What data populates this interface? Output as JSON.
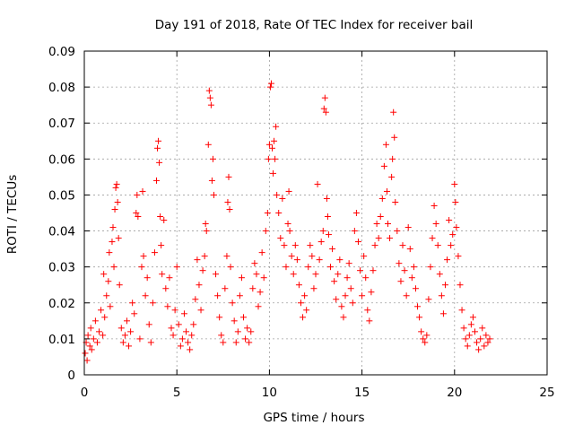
{
  "chart_data": {
    "type": "scatter",
    "title": "Day 191 of 2018, Rate Of TEC Index for receiver bail",
    "xlabel": "GPS time / hours",
    "ylabel": "ROTI / TECUs",
    "xlim": [
      0,
      25
    ],
    "ylim": [
      0,
      0.09
    ],
    "xticks": [
      0,
      5,
      10,
      15,
      20,
      25
    ],
    "xtick_labels": [
      "0",
      "5",
      "10",
      "15",
      "20",
      "25"
    ],
    "yticks": [
      0,
      0.01,
      0.02,
      0.03,
      0.04,
      0.05,
      0.06,
      0.07,
      0.08,
      0.09
    ],
    "ytick_labels": [
      "0",
      "0.01",
      "0.02",
      "0.03",
      "0.04",
      "0.05",
      "0.06",
      "0.07",
      "0.08",
      "0.09"
    ],
    "grid": true,
    "marker": "+",
    "marker_color": "#ff0000",
    "data_x_range": [
      0,
      21.9
    ],
    "series": [
      {
        "name": "ROTI",
        "points": [
          [
            0.05,
            0.006
          ],
          [
            0.1,
            0.009
          ],
          [
            0.15,
            0.004
          ],
          [
            0.2,
            0.011
          ],
          [
            0.3,
            0.008
          ],
          [
            0.35,
            0.013
          ],
          [
            0.4,
            0.007
          ],
          [
            0.5,
            0.01
          ],
          [
            0.6,
            0.015
          ],
          [
            0.7,
            0.009
          ],
          [
            0.8,
            0.012
          ],
          [
            0.9,
            0.018
          ],
          [
            1.0,
            0.011
          ],
          [
            1.05,
            0.028
          ],
          [
            1.1,
            0.016
          ],
          [
            1.2,
            0.022
          ],
          [
            1.3,
            0.026
          ],
          [
            1.35,
            0.034
          ],
          [
            1.4,
            0.019
          ],
          [
            1.5,
            0.037
          ],
          [
            1.55,
            0.041
          ],
          [
            1.6,
            0.03
          ],
          [
            1.65,
            0.046
          ],
          [
            1.7,
            0.052
          ],
          [
            1.75,
            0.053
          ],
          [
            1.8,
            0.048
          ],
          [
            1.85,
            0.038
          ],
          [
            1.9,
            0.025
          ],
          [
            2.0,
            0.013
          ],
          [
            2.1,
            0.009
          ],
          [
            2.2,
            0.011
          ],
          [
            2.3,
            0.015
          ],
          [
            2.4,
            0.008
          ],
          [
            2.5,
            0.012
          ],
          [
            2.6,
            0.02
          ],
          [
            2.7,
            0.017
          ],
          [
            2.8,
            0.045
          ],
          [
            2.85,
            0.05
          ],
          [
            2.9,
            0.044
          ],
          [
            3.0,
            0.01
          ],
          [
            3.1,
            0.03
          ],
          [
            3.15,
            0.051
          ],
          [
            3.2,
            0.033
          ],
          [
            3.3,
            0.022
          ],
          [
            3.4,
            0.027
          ],
          [
            3.5,
            0.014
          ],
          [
            3.6,
            0.009
          ],
          [
            3.7,
            0.02
          ],
          [
            3.8,
            0.034
          ],
          [
            3.9,
            0.054
          ],
          [
            3.95,
            0.063
          ],
          [
            4.0,
            0.065
          ],
          [
            4.05,
            0.059
          ],
          [
            4.1,
            0.044
          ],
          [
            4.15,
            0.036
          ],
          [
            4.2,
            0.028
          ],
          [
            4.3,
            0.043
          ],
          [
            4.4,
            0.024
          ],
          [
            4.5,
            0.019
          ],
          [
            4.6,
            0.027
          ],
          [
            4.7,
            0.013
          ],
          [
            4.8,
            0.011
          ],
          [
            4.9,
            0.018
          ],
          [
            5.0,
            0.03
          ],
          [
            5.1,
            0.014
          ],
          [
            5.2,
            0.008
          ],
          [
            5.3,
            0.01
          ],
          [
            5.4,
            0.017
          ],
          [
            5.5,
            0.012
          ],
          [
            5.6,
            0.009
          ],
          [
            5.7,
            0.007
          ],
          [
            5.8,
            0.011
          ],
          [
            5.9,
            0.014
          ],
          [
            6.0,
            0.021
          ],
          [
            6.1,
            0.032
          ],
          [
            6.2,
            0.025
          ],
          [
            6.3,
            0.018
          ],
          [
            6.4,
            0.029
          ],
          [
            6.5,
            0.033
          ],
          [
            6.55,
            0.042
          ],
          [
            6.6,
            0.04
          ],
          [
            6.7,
            0.064
          ],
          [
            6.75,
            0.079
          ],
          [
            6.8,
            0.077
          ],
          [
            6.85,
            0.075
          ],
          [
            6.9,
            0.054
          ],
          [
            6.95,
            0.06
          ],
          [
            7.0,
            0.05
          ],
          [
            7.1,
            0.028
          ],
          [
            7.2,
            0.022
          ],
          [
            7.3,
            0.016
          ],
          [
            7.4,
            0.011
          ],
          [
            7.5,
            0.009
          ],
          [
            7.6,
            0.024
          ],
          [
            7.7,
            0.033
          ],
          [
            7.75,
            0.048
          ],
          [
            7.8,
            0.055
          ],
          [
            7.85,
            0.046
          ],
          [
            7.9,
            0.03
          ],
          [
            8.0,
            0.02
          ],
          [
            8.1,
            0.015
          ],
          [
            8.2,
            0.009
          ],
          [
            8.3,
            0.012
          ],
          [
            8.4,
            0.022
          ],
          [
            8.5,
            0.027
          ],
          [
            8.6,
            0.016
          ],
          [
            8.7,
            0.01
          ],
          [
            8.8,
            0.013
          ],
          [
            8.9,
            0.009
          ],
          [
            9.0,
            0.012
          ],
          [
            9.1,
            0.024
          ],
          [
            9.2,
            0.031
          ],
          [
            9.3,
            0.028
          ],
          [
            9.4,
            0.019
          ],
          [
            9.5,
            0.023
          ],
          [
            9.6,
            0.034
          ],
          [
            9.7,
            0.027
          ],
          [
            9.8,
            0.04
          ],
          [
            9.9,
            0.045
          ],
          [
            9.95,
            0.06
          ],
          [
            10.0,
            0.064
          ],
          [
            10.05,
            0.08
          ],
          [
            10.1,
            0.081
          ],
          [
            10.15,
            0.063
          ],
          [
            10.2,
            0.056
          ],
          [
            10.25,
            0.065
          ],
          [
            10.3,
            0.06
          ],
          [
            10.35,
            0.069
          ],
          [
            10.4,
            0.05
          ],
          [
            10.5,
            0.045
          ],
          [
            10.6,
            0.038
          ],
          [
            10.7,
            0.049
          ],
          [
            10.8,
            0.036
          ],
          [
            10.9,
            0.03
          ],
          [
            11.0,
            0.042
          ],
          [
            11.05,
            0.051
          ],
          [
            11.1,
            0.04
          ],
          [
            11.2,
            0.033
          ],
          [
            11.3,
            0.028
          ],
          [
            11.4,
            0.036
          ],
          [
            11.5,
            0.032
          ],
          [
            11.6,
            0.025
          ],
          [
            11.7,
            0.02
          ],
          [
            11.8,
            0.016
          ],
          [
            11.9,
            0.022
          ],
          [
            12.0,
            0.018
          ],
          [
            12.1,
            0.03
          ],
          [
            12.2,
            0.036
          ],
          [
            12.3,
            0.033
          ],
          [
            12.4,
            0.024
          ],
          [
            12.5,
            0.028
          ],
          [
            12.6,
            0.053
          ],
          [
            12.7,
            0.032
          ],
          [
            12.8,
            0.037
          ],
          [
            12.9,
            0.04
          ],
          [
            12.95,
            0.074
          ],
          [
            13.0,
            0.077
          ],
          [
            13.05,
            0.073
          ],
          [
            13.1,
            0.049
          ],
          [
            13.15,
            0.044
          ],
          [
            13.2,
            0.039
          ],
          [
            13.3,
            0.03
          ],
          [
            13.4,
            0.035
          ],
          [
            13.5,
            0.026
          ],
          [
            13.6,
            0.021
          ],
          [
            13.7,
            0.028
          ],
          [
            13.8,
            0.032
          ],
          [
            13.9,
            0.019
          ],
          [
            14.0,
            0.016
          ],
          [
            14.1,
            0.022
          ],
          [
            14.2,
            0.027
          ],
          [
            14.3,
            0.031
          ],
          [
            14.4,
            0.024
          ],
          [
            14.5,
            0.02
          ],
          [
            14.6,
            0.04
          ],
          [
            14.7,
            0.045
          ],
          [
            14.8,
            0.037
          ],
          [
            14.9,
            0.029
          ],
          [
            15.0,
            0.022
          ],
          [
            15.1,
            0.033
          ],
          [
            15.2,
            0.027
          ],
          [
            15.3,
            0.018
          ],
          [
            15.4,
            0.015
          ],
          [
            15.5,
            0.023
          ],
          [
            15.6,
            0.029
          ],
          [
            15.7,
            0.036
          ],
          [
            15.8,
            0.042
          ],
          [
            15.9,
            0.038
          ],
          [
            16.0,
            0.044
          ],
          [
            16.1,
            0.049
          ],
          [
            16.2,
            0.058
          ],
          [
            16.3,
            0.064
          ],
          [
            16.35,
            0.051
          ],
          [
            16.4,
            0.042
          ],
          [
            16.5,
            0.038
          ],
          [
            16.6,
            0.055
          ],
          [
            16.65,
            0.06
          ],
          [
            16.7,
            0.073
          ],
          [
            16.75,
            0.066
          ],
          [
            16.8,
            0.048
          ],
          [
            16.9,
            0.04
          ],
          [
            17.0,
            0.031
          ],
          [
            17.1,
            0.026
          ],
          [
            17.2,
            0.036
          ],
          [
            17.3,
            0.029
          ],
          [
            17.4,
            0.022
          ],
          [
            17.5,
            0.041
          ],
          [
            17.6,
            0.035
          ],
          [
            17.7,
            0.027
          ],
          [
            17.8,
            0.03
          ],
          [
            17.9,
            0.024
          ],
          [
            18.0,
            0.019
          ],
          [
            18.1,
            0.016
          ],
          [
            18.2,
            0.012
          ],
          [
            18.3,
            0.01
          ],
          [
            18.4,
            0.009
          ],
          [
            18.5,
            0.011
          ],
          [
            18.6,
            0.021
          ],
          [
            18.7,
            0.03
          ],
          [
            18.8,
            0.038
          ],
          [
            18.9,
            0.047
          ],
          [
            19.0,
            0.042
          ],
          [
            19.1,
            0.036
          ],
          [
            19.2,
            0.028
          ],
          [
            19.3,
            0.022
          ],
          [
            19.4,
            0.017
          ],
          [
            19.5,
            0.025
          ],
          [
            19.6,
            0.032
          ],
          [
            19.7,
            0.043
          ],
          [
            19.8,
            0.036
          ],
          [
            19.9,
            0.039
          ],
          [
            20.0,
            0.053
          ],
          [
            20.05,
            0.048
          ],
          [
            20.1,
            0.041
          ],
          [
            20.2,
            0.033
          ],
          [
            20.3,
            0.025
          ],
          [
            20.4,
            0.018
          ],
          [
            20.5,
            0.013
          ],
          [
            20.6,
            0.01
          ],
          [
            20.7,
            0.008
          ],
          [
            20.8,
            0.011
          ],
          [
            20.9,
            0.014
          ],
          [
            21.0,
            0.016
          ],
          [
            21.1,
            0.012
          ],
          [
            21.2,
            0.009
          ],
          [
            21.3,
            0.007
          ],
          [
            21.4,
            0.01
          ],
          [
            21.5,
            0.013
          ],
          [
            21.6,
            0.008
          ],
          [
            21.7,
            0.011
          ],
          [
            21.8,
            0.009
          ],
          [
            21.9,
            0.01
          ]
        ]
      }
    ]
  }
}
